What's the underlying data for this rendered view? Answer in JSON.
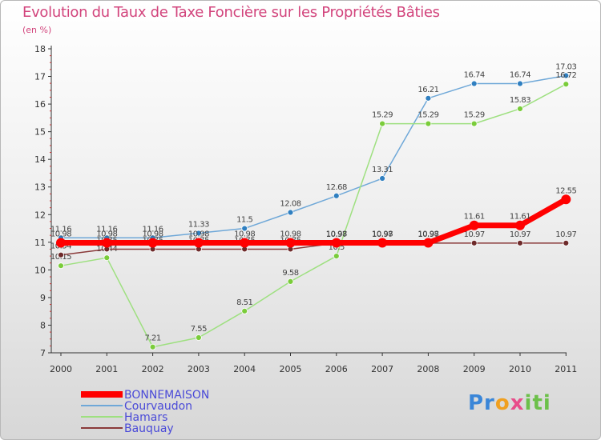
{
  "chart_data": {
    "type": "line",
    "title": "Evolution du Taux de Taxe Foncière sur les Propriétés Bâties",
    "subtitle": "(en %)",
    "x": [
      "2000",
      "2001",
      "2002",
      "2003",
      "2004",
      "2005",
      "2006",
      "2007",
      "2008",
      "2009",
      "2010",
      "2011"
    ],
    "yticks": [
      7,
      8,
      9,
      10,
      11,
      12,
      13,
      14,
      15,
      16,
      17,
      18
    ],
    "ylim": [
      7,
      18
    ],
    "grid": false,
    "legend_position": "bottom-left",
    "series": [
      {
        "name": "Courvaudon",
        "color": "#6fa8d8",
        "marker_color": "#2f7fc0",
        "values": [
          11.16,
          11.16,
          11.16,
          11.33,
          11.5,
          12.08,
          12.68,
          13.31,
          16.21,
          16.74,
          16.74,
          17.03
        ],
        "labels": [
          "11.16",
          "11.16",
          "11.16",
          "11.33",
          "11.5",
          "12.08",
          "12.68",
          "13.31",
          "16.21",
          "16.74",
          "16.74",
          "17.03"
        ]
      },
      {
        "name": "Hamars",
        "color": "#9ee080",
        "marker_color": "#7acc3a",
        "values": [
          10.15,
          10.44,
          7.21,
          7.55,
          8.51,
          9.58,
          10.5,
          15.29,
          15.29,
          15.29,
          15.83,
          16.72
        ],
        "labels": [
          "10.15",
          "10.44",
          "7.21",
          "7.55",
          "8.51",
          "9.58",
          "10.5",
          "15.29",
          "15.29",
          "15.29",
          "15.83",
          "16.72"
        ]
      },
      {
        "name": "Bauquay",
        "color": "#8a3a3a",
        "marker_color": "#6e2a2a",
        "values": [
          10.54,
          10.75,
          10.75,
          10.75,
          10.75,
          10.75,
          10.97,
          10.97,
          10.97,
          10.97,
          10.97,
          10.97
        ],
        "labels": [
          "10.54",
          "10.75",
          "10.75",
          "10.75",
          "10.75",
          "10.75",
          "10.97",
          "10.97",
          "10.97",
          "10.97",
          "10.97",
          "10.97"
        ]
      },
      {
        "name": "BONNEMAISON",
        "color": "#ff0000",
        "marker_color": "#ff0000",
        "values": [
          10.98,
          10.98,
          10.98,
          10.98,
          10.98,
          10.98,
          10.98,
          10.98,
          10.98,
          11.61,
          11.61,
          12.55
        ],
        "labels": [
          "10.98",
          "10.98",
          "10.98",
          "10.98",
          "10.98",
          "10.98",
          "10.98",
          "10.98",
          "10.98",
          "11.61",
          "11.61",
          "12.55"
        ]
      }
    ],
    "legend": [
      {
        "name": "BONNEMAISON",
        "color": "#ff0000",
        "text_color": "#4a4ad8"
      },
      {
        "name": "Courvaudon",
        "color": "#6fa8d8",
        "text_color": "#4a4ad8"
      },
      {
        "name": "Hamars",
        "color": "#9ee080",
        "text_color": "#4a4ad8"
      },
      {
        "name": "Bauquay",
        "color": "#8a3a3a",
        "text_color": "#4a4ad8"
      }
    ]
  },
  "logo": {
    "p1": "Pr",
    "p2": "o",
    "p3": "x",
    "p4": "iti"
  }
}
